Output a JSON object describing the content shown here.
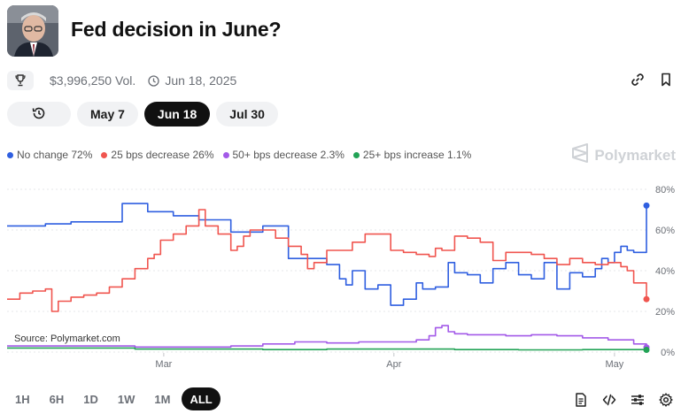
{
  "header": {
    "title": "Fed decision in June?",
    "volume": "$3,996,250 Vol.",
    "date": "Jun 18, 2025"
  },
  "date_tabs": [
    {
      "label": "May 7",
      "active": false
    },
    {
      "label": "Jun 18",
      "active": true
    },
    {
      "label": "Jul 30",
      "active": false
    }
  ],
  "watermark": "Polymarket",
  "source": "Source: Polymarket.com",
  "range_tabs": [
    {
      "label": "1H",
      "active": false
    },
    {
      "label": "6H",
      "active": false
    },
    {
      "label": "1D",
      "active": false
    },
    {
      "label": "1W",
      "active": false
    },
    {
      "label": "1M",
      "active": false
    },
    {
      "label": "ALL",
      "active": true
    }
  ],
  "colors": {
    "no_change": "#2f5fe0",
    "decrease_25": "#f0554f",
    "decrease_50": "#a35ae8",
    "increase_25": "#22a356"
  },
  "icons": [
    "trophy-icon",
    "clock-icon",
    "link-icon",
    "bookmark-icon",
    "history-icon",
    "polymarket-logo-icon",
    "document-icon",
    "code-icon",
    "sliders-icon",
    "gear-icon"
  ],
  "chart_data": {
    "type": "line",
    "ylim": [
      0,
      80
    ],
    "y_ticks": [
      "80%",
      "60%",
      "40%",
      "20%",
      "0%"
    ],
    "x_ticks": [
      "Mar",
      "Apr",
      "May"
    ],
    "legend_position": "top-left",
    "grid": true,
    "series": [
      {
        "name": "No change",
        "legend": "No change 72%",
        "color": "#2f5fe0",
        "x": [
          0,
          6,
          10,
          14,
          18,
          22,
          26,
          30,
          35,
          40,
          44,
          48,
          50,
          52,
          53,
          54,
          56,
          58,
          60,
          62,
          64,
          65,
          67,
          68,
          69,
          70,
          72,
          74,
          76,
          78,
          80,
          82,
          84,
          86,
          88,
          90,
          92,
          93,
          94,
          95,
          96,
          97,
          98,
          100
        ],
        "values": [
          62,
          63,
          64,
          64,
          73,
          69,
          67,
          65,
          59,
          62,
          46,
          46,
          43,
          36,
          33,
          40,
          31,
          33,
          23,
          26,
          34,
          31,
          32,
          32,
          44,
          39,
          38,
          34,
          41,
          44,
          38,
          36,
          44,
          31,
          39,
          37,
          41,
          46,
          44,
          49,
          52,
          50,
          49,
          72
        ]
      },
      {
        "name": "25 bps decrease",
        "legend": "25 bps decrease 26%",
        "color": "#f0554f",
        "x": [
          0,
          2,
          4,
          6,
          7,
          8,
          10,
          12,
          14,
          16,
          18,
          20,
          22,
          23,
          24,
          26,
          28,
          30,
          31,
          33,
          35,
          36,
          37,
          38,
          40,
          42,
          44,
          46,
          47,
          48,
          50,
          52,
          54,
          56,
          58,
          60,
          62,
          64,
          66,
          67,
          68,
          70,
          72,
          74,
          76,
          78,
          80,
          82,
          84,
          86,
          88,
          90,
          92,
          94,
          96,
          97,
          98,
          100
        ],
        "values": [
          26,
          29,
          30,
          31,
          20,
          25,
          27,
          28,
          29,
          32,
          36,
          41,
          46,
          48,
          55,
          58,
          62,
          70,
          62,
          58,
          50,
          52,
          57,
          60,
          60,
          56,
          52,
          48,
          41,
          44,
          50,
          50,
          54,
          58,
          58,
          50,
          49,
          48,
          47,
          51,
          50,
          57,
          56,
          54,
          45,
          49,
          49,
          48,
          46,
          43,
          46,
          44,
          43,
          44,
          42,
          40,
          34,
          26
        ]
      },
      {
        "name": "50+ bps decrease",
        "legend": "50+ bps decrease 2.3%",
        "color": "#a35ae8",
        "x": [
          0,
          10,
          20,
          30,
          35,
          40,
          45,
          50,
          55,
          60,
          64,
          66,
          67,
          68,
          69,
          70,
          72,
          74,
          78,
          82,
          86,
          90,
          94,
          98,
          100
        ],
        "values": [
          3,
          3,
          2.5,
          2.5,
          3,
          4,
          5,
          4.5,
          5,
          5,
          6,
          8,
          12,
          13,
          10,
          9,
          8.5,
          8.5,
          8,
          8.5,
          8,
          7,
          6,
          4,
          2.3
        ]
      },
      {
        "name": "25+ bps increase",
        "legend": "25+ bps increase 1.1%",
        "color": "#22a356",
        "x": [
          0,
          10,
          20,
          30,
          40,
          50,
          60,
          70,
          80,
          90,
          100
        ],
        "values": [
          2,
          2,
          1.5,
          1.5,
          1.2,
          1.5,
          1.5,
          1.2,
          1.1,
          1.2,
          1.1
        ]
      }
    ]
  }
}
